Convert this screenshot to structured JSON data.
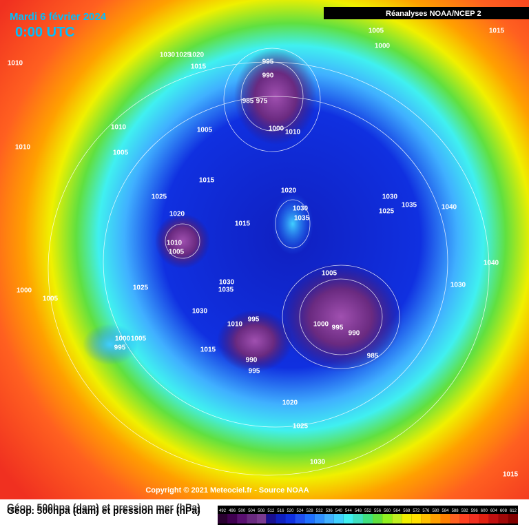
{
  "header": {
    "date": "Mardi 6 février 2024",
    "time": "0:00 UTC",
    "source": "Réanalyses NOAA/NCEP 2"
  },
  "copyright": "Copyright © 2021 Meteociel.fr - Source NOAA",
  "legend": {
    "title": "Géop. 500hpa (dam) et pression mer (hPa)",
    "values": [
      492,
      496,
      500,
      504,
      508,
      512,
      516,
      520,
      524,
      528,
      532,
      536,
      540,
      544,
      548,
      552,
      556,
      560,
      564,
      568,
      572,
      576,
      580,
      584,
      588,
      592,
      596,
      600,
      604,
      608,
      612
    ],
    "colors": [
      "#2a0030",
      "#400050",
      "#5a1070",
      "#6a2a80",
      "#7a3a90",
      "#1a1090",
      "#1020c0",
      "#1030e0",
      "#2050f0",
      "#2070ff",
      "#3090ff",
      "#40b0ff",
      "#40d0ff",
      "#40f0f0",
      "#40e0c0",
      "#40e080",
      "#60e040",
      "#90f020",
      "#c0f020",
      "#f0f000",
      "#ffe000",
      "#ffc000",
      "#ffa000",
      "#ff8000",
      "#ff6020",
      "#ff4020",
      "#f03020",
      "#e02010",
      "#c01010",
      "#a00808",
      "#800000"
    ]
  },
  "isobar_labels": [
    1010,
    1030,
    1025,
    1020,
    1015,
    1005,
    1000,
    1015,
    995,
    990,
    985,
    975,
    1000,
    1010,
    1010,
    1005,
    1010,
    1005,
    1015,
    1020,
    1025,
    1020,
    1030,
    1035,
    1015,
    1030,
    1035,
    1040,
    1025,
    1010,
    1005,
    1005,
    1025,
    1030,
    1035,
    1000,
    1005,
    1030,
    1030,
    1010,
    995,
    1000,
    995,
    990,
    985,
    1000,
    1005,
    995,
    1015,
    990,
    995,
    1020,
    1025,
    1030,
    1015,
    1040
  ]
}
